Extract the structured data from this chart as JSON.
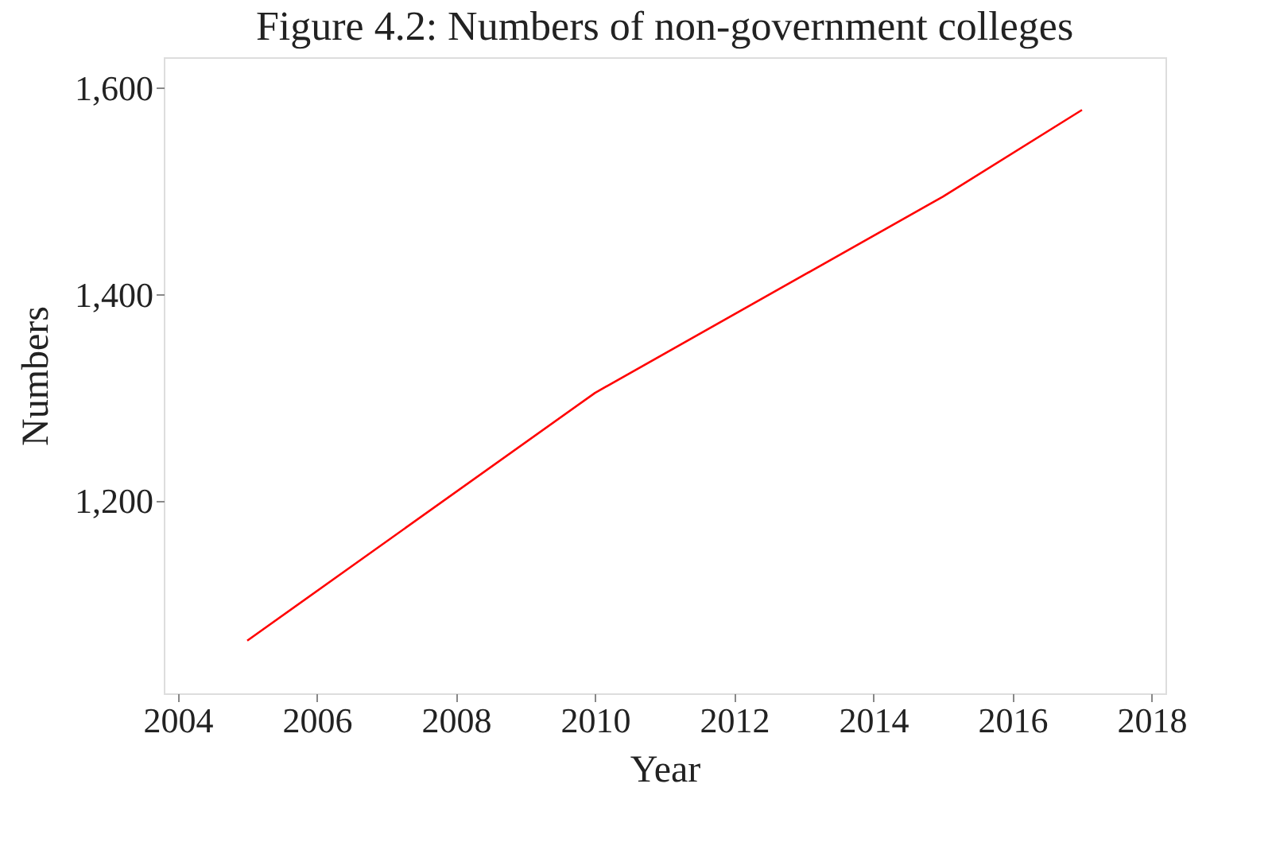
{
  "chart_data": {
    "type": "line",
    "title": "Figure 4.2: Numbers of non-government colleges",
    "xlabel": "Year",
    "ylabel": "Numbers",
    "x": [
      2005,
      2010,
      2015,
      2017
    ],
    "series": [
      {
        "color": "#ff0000",
        "values": [
          1065,
          1305,
          1495,
          1579
        ]
      }
    ],
    "xlim": [
      2003.8,
      2018.2
    ],
    "xticks": [
      2004,
      2006,
      2008,
      2010,
      2012,
      2014,
      2016,
      2018
    ],
    "ylim": [
      1014,
      1630
    ],
    "yticks": [
      {
        "value": 1200,
        "label": "1,200"
      },
      {
        "value": 1400,
        "label": "1,400"
      },
      {
        "value": 1600,
        "label": "1,600"
      }
    ],
    "grid": false,
    "marker": "none",
    "line_style": "solid"
  }
}
